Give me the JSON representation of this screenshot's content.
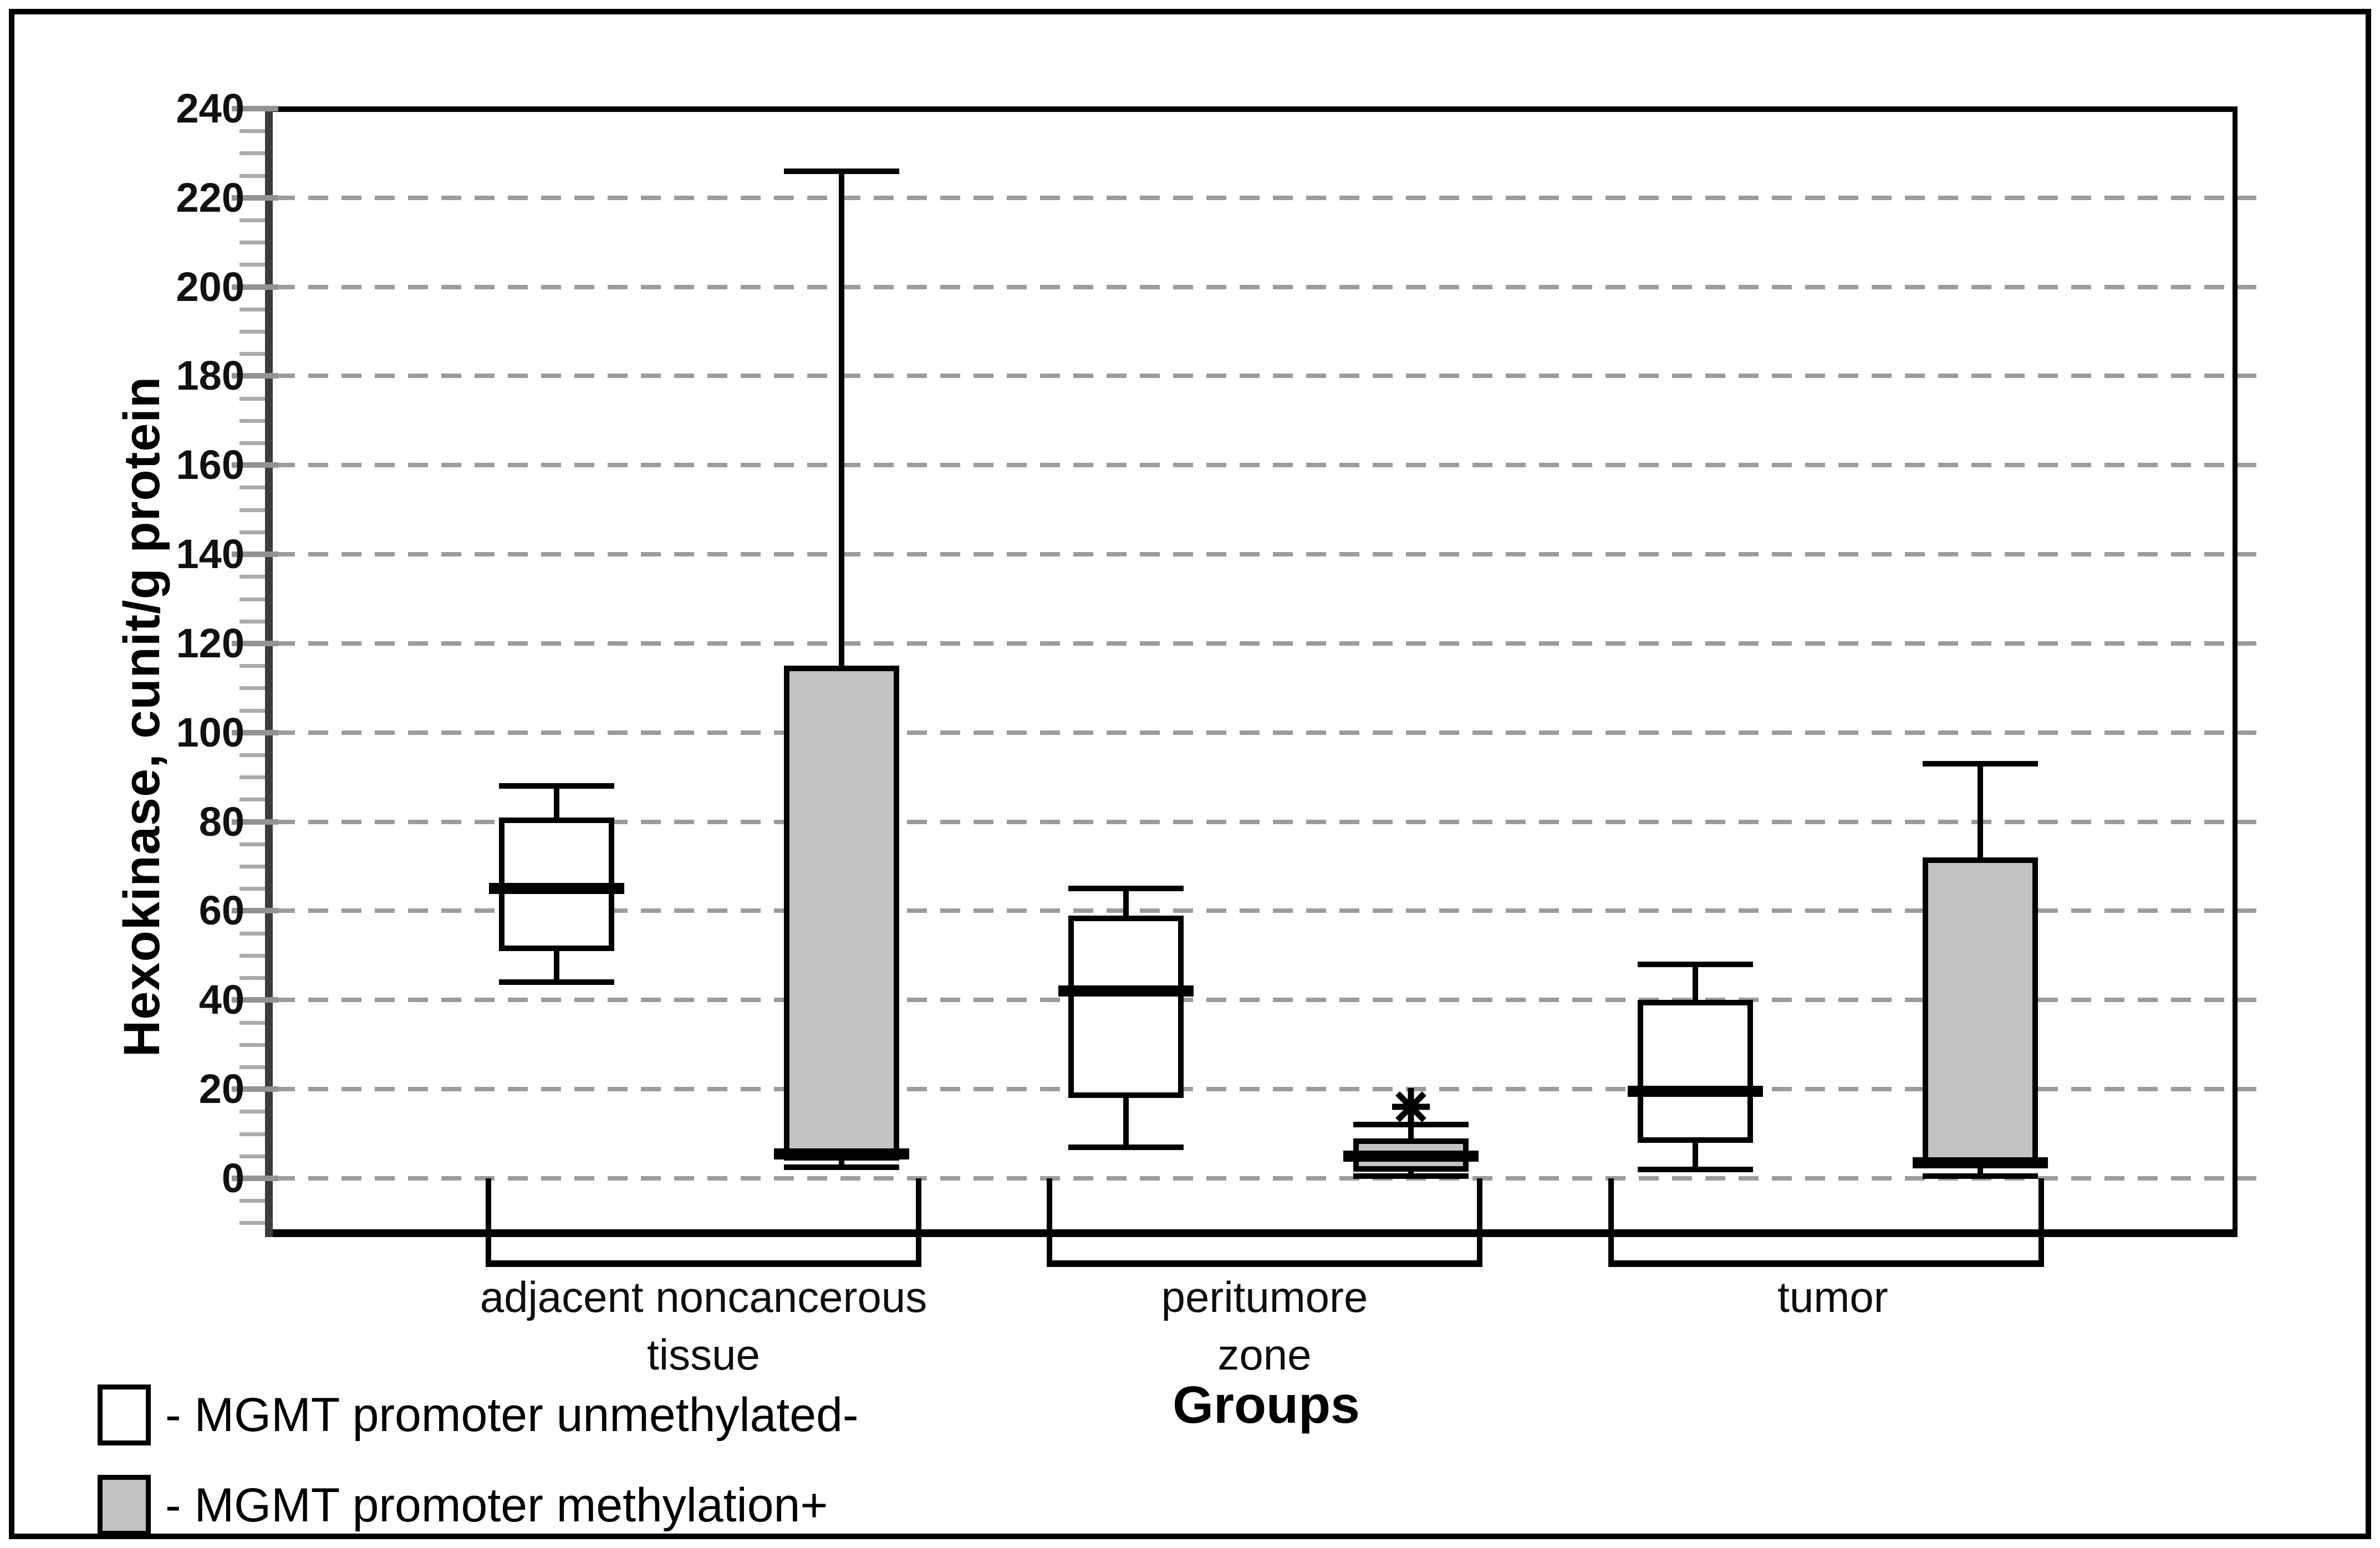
{
  "chart_data": {
    "type": "box",
    "title": "",
    "ylabel": "Hexokinase, cunit/g protein",
    "xlabel": "Groups",
    "ylim": [
      0,
      240
    ],
    "yticks": [
      0,
      20,
      40,
      60,
      80,
      100,
      120,
      140,
      160,
      180,
      200,
      220,
      240
    ],
    "minor_tick_step": 5,
    "grid": "horizontal dashed gray lines at every 20 units (0-220)",
    "legend_position": "bottom-left",
    "categories": [
      "adjacent noncancerous tissue",
      "peritumore zone",
      "tumor"
    ],
    "category_label_lines": [
      [
        "adjacent noncancerous",
        "tissue"
      ],
      [
        "peritumore",
        "zone"
      ],
      [
        "tumor"
      ]
    ],
    "series": [
      {
        "name": "MGMT promoter unmethylated-",
        "legend_label": "- MGMT promoter unmethylated-",
        "fill": "#ffffff",
        "boxes": [
          {
            "category": "adjacent noncancerous tissue",
            "whisker_low": 44,
            "q1": 51,
            "median": 65,
            "q3": 81,
            "whisker_high": 88
          },
          {
            "category": "peritumore zone",
            "whisker_low": 7,
            "q1": 18,
            "median": 42,
            "q3": 59,
            "whisker_high": 65
          },
          {
            "category": "tumor",
            "whisker_low": 2,
            "q1": 8,
            "median": 19.5,
            "q3": 40,
            "whisker_high": 48
          }
        ]
      },
      {
        "name": "MGMT promoter methylation+",
        "legend_label": "- MGMT promoter methylation+",
        "fill": "#c3c3c3",
        "boxes": [
          {
            "category": "adjacent noncancerous tissue",
            "whisker_low": 2.5,
            "q1": 4,
            "median": 5.5,
            "q3": 115,
            "whisker_high": 226
          },
          {
            "category": "peritumore zone",
            "whisker_low": 0.5,
            "q1": 1.5,
            "median": 5,
            "q3": 9,
            "whisker_high": 12,
            "outliers": [
              16
            ]
          },
          {
            "category": "tumor",
            "whisker_low": 0.5,
            "q1": 2.5,
            "median": 3.5,
            "q3": 72,
            "whisker_high": 93
          }
        ]
      }
    ],
    "annotations": [
      {
        "type": "asterisk-outlier",
        "category": "peritumore zone",
        "series": "MGMT promoter methylation+",
        "value": 16
      }
    ]
  },
  "style_colors": {
    "frame": "#000000",
    "axis_band": "#3c3c3c",
    "gridline": "#9c9c9c",
    "major_tick": "#939393",
    "minor_tick": "#ababab",
    "unmethylated_fill": "#ffffff",
    "methylated_fill": "#c3c3c3",
    "text": "#000000"
  }
}
